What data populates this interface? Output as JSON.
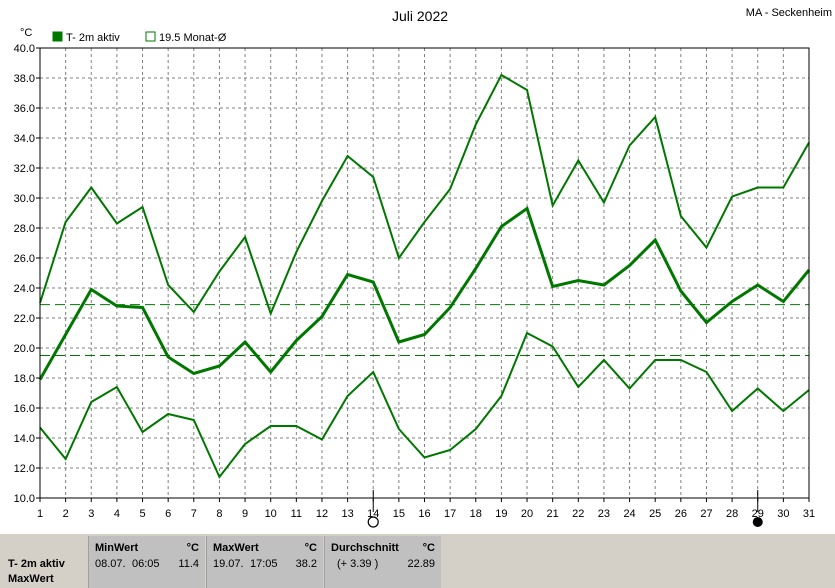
{
  "header": {
    "title": "Juli 2022",
    "station": "MA - Seckenheim"
  },
  "legend": [
    {
      "label": "T- 2m aktiv",
      "color": "#007800",
      "filled": true
    },
    {
      "label": "19.5 Monat-Ø",
      "color": "#007800",
      "filled": false
    }
  ],
  "markers": {
    "new_moon_day": 14,
    "full_moon_day": 29
  },
  "chart_data": {
    "type": "line",
    "title": "Juli 2022",
    "ylabel": "°C",
    "xlabel": "",
    "ylim": [
      10,
      40
    ],
    "xlim": [
      1,
      31
    ],
    "grid": true,
    "legend_position": "top-left",
    "x": [
      1,
      2,
      3,
      4,
      5,
      6,
      7,
      8,
      9,
      10,
      11,
      12,
      13,
      14,
      15,
      16,
      17,
      18,
      19,
      20,
      21,
      22,
      23,
      24,
      25,
      26,
      27,
      28,
      29,
      30,
      31
    ],
    "yticks": [
      "10.0",
      "12.0",
      "14.0",
      "16.0",
      "18.0",
      "20.0",
      "22.0",
      "24.0",
      "26.0",
      "28.0",
      "30.0",
      "32.0",
      "34.0",
      "36.0",
      "38.0",
      "40.0"
    ],
    "series": [
      {
        "name": "",
        "role": "max",
        "color": "#007800",
        "values": [
          23.0,
          28.4,
          30.7,
          28.3,
          29.4,
          24.2,
          22.4,
          25.1,
          27.4,
          22.3,
          26.4,
          29.8,
          32.8,
          31.4,
          26.0,
          28.4,
          30.6,
          34.9,
          38.2,
          37.2,
          29.5,
          32.5,
          29.7,
          33.5,
          35.4,
          28.8,
          26.7,
          30.1,
          30.7,
          30.7,
          33.7
        ]
      },
      {
        "name": "T- 2m aktiv",
        "role": "mean",
        "color": "#007800",
        "values": [
          17.9,
          20.9,
          23.9,
          22.8,
          22.7,
          19.4,
          18.3,
          18.8,
          20.4,
          18.4,
          20.5,
          22.1,
          24.9,
          24.4,
          20.4,
          20.9,
          22.7,
          25.3,
          28.1,
          29.3,
          24.1,
          24.5,
          24.2,
          25.5,
          27.2,
          23.8,
          21.7,
          23.1,
          24.2,
          23.1,
          25.2
        ]
      },
      {
        "name": "",
        "role": "min",
        "color": "#007800",
        "values": [
          14.7,
          12.6,
          16.4,
          17.4,
          14.4,
          15.6,
          15.2,
          11.4,
          13.6,
          14.8,
          14.8,
          13.9,
          16.8,
          18.4,
          14.6,
          12.7,
          13.2,
          14.6,
          16.8,
          21.0,
          20.1,
          17.4,
          19.2,
          17.3,
          19.2,
          19.2,
          18.4,
          15.8,
          17.3,
          15.8,
          17.2
        ]
      }
    ],
    "reference_lines": [
      {
        "label": "19.5 Monat-Ø",
        "value": 19.5
      },
      {
        "label": "",
        "value": 22.89
      }
    ]
  },
  "stats": {
    "row_labels": [
      "T- 2m aktiv",
      "MaxWert"
    ],
    "min": {
      "header": "MinWert",
      "unit": "°C",
      "date": "08.07.",
      "time": "06:05",
      "value": "11.4"
    },
    "max": {
      "header": "MaxWert",
      "unit": "°C",
      "date": "19.07.",
      "time": "17:05",
      "value": "38.2"
    },
    "avg": {
      "header": "Durchschnitt",
      "unit": "°C",
      "delta": "(+ 3.39 )",
      "value": "22.89"
    }
  }
}
